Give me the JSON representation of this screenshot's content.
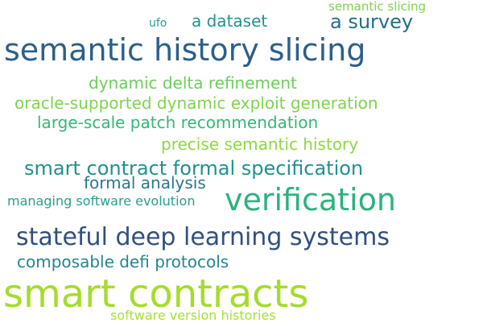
{
  "words": [
    {
      "text": "semantic slicing",
      "color": "#7fd34e"
    },
    {
      "text": "ufo",
      "color": "#2a9d8f"
    },
    {
      "text": "a dataset",
      "color": "#21918c"
    },
    {
      "text": "a survey",
      "color": "#1f6f8b"
    },
    {
      "text": "semantic history slicing",
      "color": "#2c5f8a"
    },
    {
      "text": "dynamic delta refinement",
      "color": "#6ccd5a"
    },
    {
      "text": "oracle-supported dynamic exploit generation",
      "color": "#7fd34e"
    },
    {
      "text": "large-scale patch recommendation",
      "color": "#35b779"
    },
    {
      "text": "precise semantic history",
      "color": "#8fd744"
    },
    {
      "text": "smart contract formal specification",
      "color": "#21918c"
    },
    {
      "text": "formal analysis",
      "color": "#2a788e"
    },
    {
      "text": "verification",
      "color": "#2db27d"
    },
    {
      "text": "managing software evolution",
      "color": "#25a18e"
    },
    {
      "text": "stateful deep learning systems",
      "color": "#31507f"
    },
    {
      "text": "composable defi protocols",
      "color": "#24868e"
    },
    {
      "text": "smart contracts",
      "color": "#a6dc2a"
    },
    {
      "text": "software version histories",
      "color": "#a9dd3a"
    }
  ]
}
